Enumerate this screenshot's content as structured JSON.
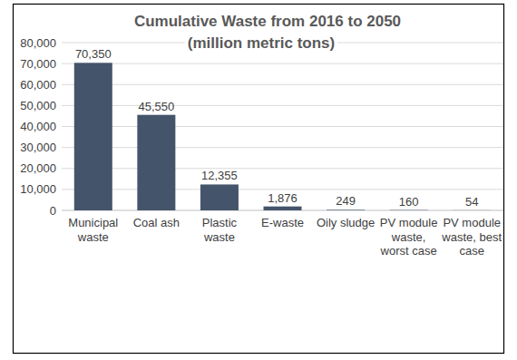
{
  "chart_data": {
    "type": "bar",
    "title": "Cumulative Waste from 2016 to 2050",
    "subtitle": "(million metric tons)",
    "categories": [
      "Municipal waste",
      "Coal ash",
      "Plastic waste",
      "E-waste",
      "Oily sludge",
      "PV module waste, worst case",
      "PV module waste, best case"
    ],
    "values": [
      70350,
      45550,
      12355,
      1876,
      249,
      160,
      54
    ],
    "value_labels": [
      "70,350",
      "45,550",
      "12,355",
      "1,876",
      "249",
      "160",
      "54"
    ],
    "color": "#44546a",
    "ylim": [
      0,
      80000
    ],
    "yticks": [
      0,
      {
        "value": 10000,
        "label": "10,000"
      },
      {
        "value": 20000,
        "label": "20,000"
      },
      {
        "value": 30000,
        "label": "30,000"
      },
      {
        "value": 40000,
        "label": "40,000"
      },
      {
        "value": 50000,
        "label": "50,000"
      },
      {
        "value": 60000,
        "label": "60,000"
      },
      {
        "value": 70000,
        "label": "70,000"
      },
      {
        "value": 80000,
        "label": "80,000"
      }
    ],
    "grid": true,
    "data_labels": true
  }
}
